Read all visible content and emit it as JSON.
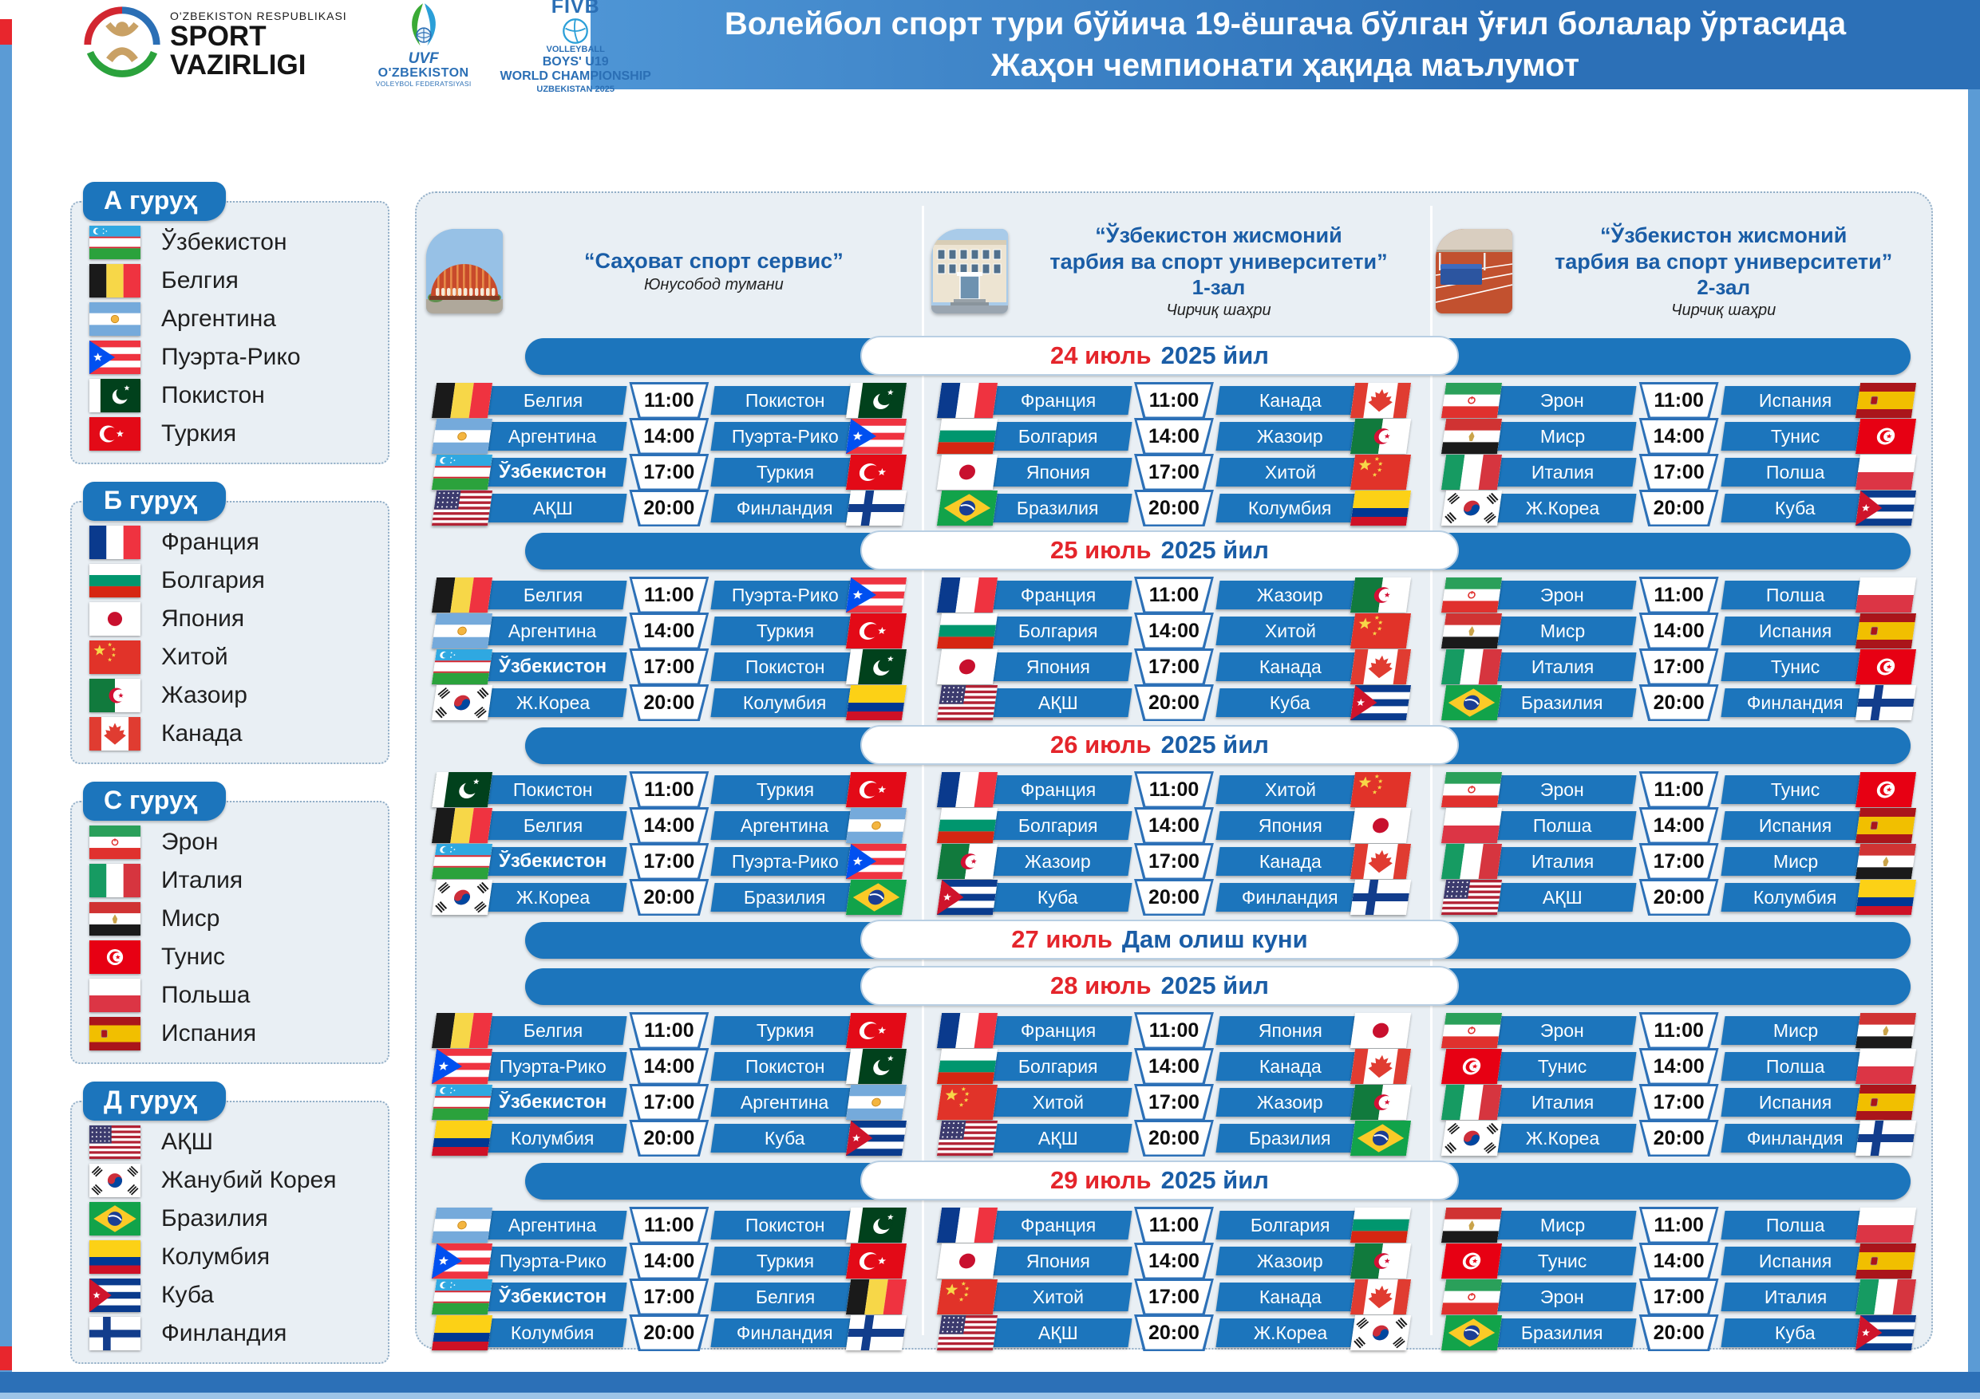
{
  "header": {
    "title_line1": "Волейбол спорт тури бўйича 19-ёшгача бўлган ўғил болалар ўртасида",
    "title_line2": "Жаҳон чемпионати ҳақида маълумот",
    "ministry": {
      "top": "O'ZBEKISTON RESPUBLIKASI",
      "main1": "SPORT",
      "main2": "VAZIRLIGI"
    },
    "uvf": {
      "abbr": "UVF",
      "name": "O'ZBEKISTON",
      "sub": "VOLEYBOL FEDERATSIYASI"
    },
    "fivb": {
      "brand": "FIVB",
      "sport": "VOLLEYBALL",
      "cat": "BOYS' U19",
      "event": "WORLD CHAMPIONSHIP",
      "host": "UZBEKISTAN 2025"
    }
  },
  "groups": [
    {
      "name": "А гуруҳ",
      "teams": [
        {
          "flag": "uz",
          "label": "Ўзбекистон"
        },
        {
          "flag": "be",
          "label": "Белгия"
        },
        {
          "flag": "ar",
          "label": "Аргентина"
        },
        {
          "flag": "pr",
          "label": "Пуэрта-Рико"
        },
        {
          "flag": "pk",
          "label": "Покистон"
        },
        {
          "flag": "tr",
          "label": "Туркия"
        }
      ]
    },
    {
      "name": "Б гуруҳ",
      "teams": [
        {
          "flag": "fr",
          "label": "Франция"
        },
        {
          "flag": "bg",
          "label": "Болгария"
        },
        {
          "flag": "jp",
          "label": "Япония"
        },
        {
          "flag": "cn",
          "label": "Хитой"
        },
        {
          "flag": "dz",
          "label": "Жазоир"
        },
        {
          "flag": "ca",
          "label": "Канада"
        }
      ]
    },
    {
      "name": "С гуруҳ",
      "teams": [
        {
          "flag": "ir",
          "label": "Эрон"
        },
        {
          "flag": "it",
          "label": "Италия"
        },
        {
          "flag": "eg",
          "label": "Миср"
        },
        {
          "flag": "tn",
          "label": "Тунис"
        },
        {
          "flag": "pl",
          "label": "Польша"
        },
        {
          "flag": "es",
          "label": "Испания"
        }
      ]
    },
    {
      "name": "Д гуруҳ",
      "teams": [
        {
          "flag": "us",
          "label": "АҚШ"
        },
        {
          "flag": "kr",
          "label": "Жанубий Корея"
        },
        {
          "flag": "br",
          "label": "Бразилия"
        },
        {
          "flag": "co",
          "label": "Колумбия"
        },
        {
          "flag": "cu",
          "label": "Куба"
        },
        {
          "flag": "fi",
          "label": "Финландия"
        }
      ]
    }
  ],
  "venues": [
    {
      "name_lines": [
        "“Саҳоват спорт сервис”"
      ],
      "hall": "",
      "sub": "Юнусобод тумани",
      "photo": "dome"
    },
    {
      "name_lines": [
        "“Ўзбекистон жисмоний",
        "тарбия ва спорт университети”"
      ],
      "hall": "1-зал",
      "sub": "Чирчиқ шаҳри",
      "photo": "building"
    },
    {
      "name_lines": [
        "“Ўзбекистон жисмоний",
        "тарбия ва спорт университети”"
      ],
      "hall": "2-зал",
      "sub": "Чирчиқ шаҳри",
      "photo": "track"
    }
  ],
  "days": [
    {
      "label_red": "24 июль",
      "label_blue": "2025 йил",
      "venues": [
        [
          {
            "hf": "be",
            "home": "Белгия",
            "time": "11:00",
            "away": "Покистон",
            "af": "pk"
          },
          {
            "hf": "ar",
            "home": "Аргентина",
            "time": "14:00",
            "away": "Пуэрта-Рико",
            "af": "pr"
          },
          {
            "hf": "uz",
            "home": "Ўзбекистон",
            "time": "17:00",
            "away": "Туркия",
            "af": "tr"
          },
          {
            "hf": "us",
            "home": "АҚШ",
            "time": "20:00",
            "away": "Финландия",
            "af": "fi"
          }
        ],
        [
          {
            "hf": "fr",
            "home": "Франция",
            "time": "11:00",
            "away": "Канада",
            "af": "ca"
          },
          {
            "hf": "bg",
            "home": "Болгария",
            "time": "14:00",
            "away": "Жазоир",
            "af": "dz"
          },
          {
            "hf": "jp",
            "home": "Япония",
            "time": "17:00",
            "away": "Хитой",
            "af": "cn"
          },
          {
            "hf": "br",
            "home": "Бразилия",
            "time": "20:00",
            "away": "Колумбия",
            "af": "co"
          }
        ],
        [
          {
            "hf": "ir",
            "home": "Эрон",
            "time": "11:00",
            "away": "Испания",
            "af": "es"
          },
          {
            "hf": "eg",
            "home": "Миср",
            "time": "14:00",
            "away": "Тунис",
            "af": "tn"
          },
          {
            "hf": "it",
            "home": "Италия",
            "time": "17:00",
            "away": "Полша",
            "af": "pl"
          },
          {
            "hf": "kr",
            "home": "Ж.Кореа",
            "time": "20:00",
            "away": "Куба",
            "af": "cu"
          }
        ]
      ]
    },
    {
      "label_red": "25 июль",
      "label_blue": "2025 йил",
      "venues": [
        [
          {
            "hf": "be",
            "home": "Белгия",
            "time": "11:00",
            "away": "Пуэрта-Рико",
            "af": "pr"
          },
          {
            "hf": "ar",
            "home": "Аргентина",
            "time": "14:00",
            "away": "Туркия",
            "af": "tr"
          },
          {
            "hf": "uz",
            "home": "Ўзбекистон",
            "time": "17:00",
            "away": "Покистон",
            "af": "pk"
          },
          {
            "hf": "kr",
            "home": "Ж.Кореа",
            "time": "20:00",
            "away": "Колумбия",
            "af": "co"
          }
        ],
        [
          {
            "hf": "fr",
            "home": "Франция",
            "time": "11:00",
            "away": "Жазоир",
            "af": "dz"
          },
          {
            "hf": "bg",
            "home": "Болгария",
            "time": "14:00",
            "away": "Хитой",
            "af": "cn"
          },
          {
            "hf": "jp",
            "home": "Япония",
            "time": "17:00",
            "away": "Канада",
            "af": "ca"
          },
          {
            "hf": "us",
            "home": "АҚШ",
            "time": "20:00",
            "away": "Куба",
            "af": "cu"
          }
        ],
        [
          {
            "hf": "ir",
            "home": "Эрон",
            "time": "11:00",
            "away": "Полша",
            "af": "pl"
          },
          {
            "hf": "eg",
            "home": "Миср",
            "time": "14:00",
            "away": "Испания",
            "af": "es"
          },
          {
            "hf": "it",
            "home": "Италия",
            "time": "17:00",
            "away": "Тунис",
            "af": "tn"
          },
          {
            "hf": "br",
            "home": "Бразилия",
            "time": "20:00",
            "away": "Финландия",
            "af": "fi"
          }
        ]
      ]
    },
    {
      "label_red": "26 июль",
      "label_blue": "2025 йил",
      "venues": [
        [
          {
            "hf": "pk",
            "home": "Покистон",
            "time": "11:00",
            "away": "Туркия",
            "af": "tr"
          },
          {
            "hf": "be",
            "home": "Белгия",
            "time": "14:00",
            "away": "Аргентина",
            "af": "ar"
          },
          {
            "hf": "uz",
            "home": "Ўзбекистон",
            "time": "17:00",
            "away": "Пуэрта-Рико",
            "af": "pr"
          },
          {
            "hf": "kr",
            "home": "Ж.Кореа",
            "time": "20:00",
            "away": "Бразилия",
            "af": "br"
          }
        ],
        [
          {
            "hf": "fr",
            "home": "Франция",
            "time": "11:00",
            "away": "Хитой",
            "af": "cn"
          },
          {
            "hf": "bg",
            "home": "Болгария",
            "time": "14:00",
            "away": "Япония",
            "af": "jp"
          },
          {
            "hf": "dz",
            "home": "Жазоир",
            "time": "17:00",
            "away": "Канада",
            "af": "ca"
          },
          {
            "hf": "cu",
            "home": "Куба",
            "time": "20:00",
            "away": "Финландия",
            "af": "fi"
          }
        ],
        [
          {
            "hf": "ir",
            "home": "Эрон",
            "time": "11:00",
            "away": "Тунис",
            "af": "tn"
          },
          {
            "hf": "pl",
            "home": "Полша",
            "time": "14:00",
            "away": "Испания",
            "af": "es"
          },
          {
            "hf": "it",
            "home": "Италия",
            "time": "17:00",
            "away": "Миср",
            "af": "eg"
          },
          {
            "hf": "us",
            "home": "АҚШ",
            "time": "20:00",
            "away": "Колумбия",
            "af": "co"
          }
        ]
      ]
    },
    {
      "label_red": "27 июль",
      "label_blue": "Дам олиш куни",
      "venues": []
    },
    {
      "label_red": "28 июль",
      "label_blue": "2025 йил",
      "venues": [
        [
          {
            "hf": "be",
            "home": "Белгия",
            "time": "11:00",
            "away": "Туркия",
            "af": "tr"
          },
          {
            "hf": "pr",
            "home": "Пуэрта-Рико",
            "time": "14:00",
            "away": "Покистон",
            "af": "pk"
          },
          {
            "hf": "uz",
            "home": "Ўзбекистон",
            "time": "17:00",
            "away": "Аргентина",
            "af": "ar"
          },
          {
            "hf": "co",
            "home": "Колумбия",
            "time": "20:00",
            "away": "Куба",
            "af": "cu"
          }
        ],
        [
          {
            "hf": "fr",
            "home": "Франция",
            "time": "11:00",
            "away": "Япония",
            "af": "jp"
          },
          {
            "hf": "bg",
            "home": "Болгария",
            "time": "14:00",
            "away": "Канада",
            "af": "ca"
          },
          {
            "hf": "cn",
            "home": "Хитой",
            "time": "17:00",
            "away": "Жазоир",
            "af": "dz"
          },
          {
            "hf": "us",
            "home": "АҚШ",
            "time": "20:00",
            "away": "Бразилия",
            "af": "br"
          }
        ],
        [
          {
            "hf": "ir",
            "home": "Эрон",
            "time": "11:00",
            "away": "Миср",
            "af": "eg"
          },
          {
            "hf": "tn",
            "home": "Тунис",
            "time": "14:00",
            "away": "Полша",
            "af": "pl"
          },
          {
            "hf": "it",
            "home": "Италия",
            "time": "17:00",
            "away": "Испания",
            "af": "es"
          },
          {
            "hf": "kr",
            "home": "Ж.Кореа",
            "time": "20:00",
            "away": "Финландия",
            "af": "fi"
          }
        ]
      ]
    },
    {
      "label_red": "29 июль",
      "label_blue": "2025 йил",
      "venues": [
        [
          {
            "hf": "ar",
            "home": "Аргентина",
            "time": "11:00",
            "away": "Покистон",
            "af": "pk"
          },
          {
            "hf": "pr",
            "home": "Пуэрта-Рико",
            "time": "14:00",
            "away": "Туркия",
            "af": "tr"
          },
          {
            "hf": "uz",
            "home": "Ўзбекистон",
            "time": "17:00",
            "away": "Белгия",
            "af": "be"
          },
          {
            "hf": "co",
            "home": "Колумбия",
            "time": "20:00",
            "away": "Финландия",
            "af": "fi"
          }
        ],
        [
          {
            "hf": "fr",
            "home": "Франция",
            "time": "11:00",
            "away": "Болгария",
            "af": "bg"
          },
          {
            "hf": "jp",
            "home": "Япония",
            "time": "14:00",
            "away": "Жазоир",
            "af": "dz"
          },
          {
            "hf": "cn",
            "home": "Хитой",
            "time": "17:00",
            "away": "Канада",
            "af": "ca"
          },
          {
            "hf": "us",
            "home": "АҚШ",
            "time": "20:00",
            "away": "Ж.Кореа",
            "af": "kr"
          }
        ],
        [
          {
            "hf": "eg",
            "home": "Миср",
            "time": "11:00",
            "away": "Полша",
            "af": "pl"
          },
          {
            "hf": "tn",
            "home": "Тунис",
            "time": "14:00",
            "away": "Испания",
            "af": "es"
          },
          {
            "hf": "ir",
            "home": "Эрон",
            "time": "17:00",
            "away": "Италия",
            "af": "it"
          },
          {
            "hf": "br",
            "home": "Бразилия",
            "time": "20:00",
            "away": "Куба",
            "af": "cu"
          }
        ]
      ]
    }
  ],
  "colors": {
    "primary_blue": "#1C75BC",
    "dark_blue_text": "#1A5DA6",
    "red_accent": "#E4252B",
    "panel_bg": "#E9EFF4",
    "band_gradient_start": "#4E95D5",
    "band_gradient_end": "#2C70B7",
    "edge_stripe": "#5B9BD5"
  }
}
